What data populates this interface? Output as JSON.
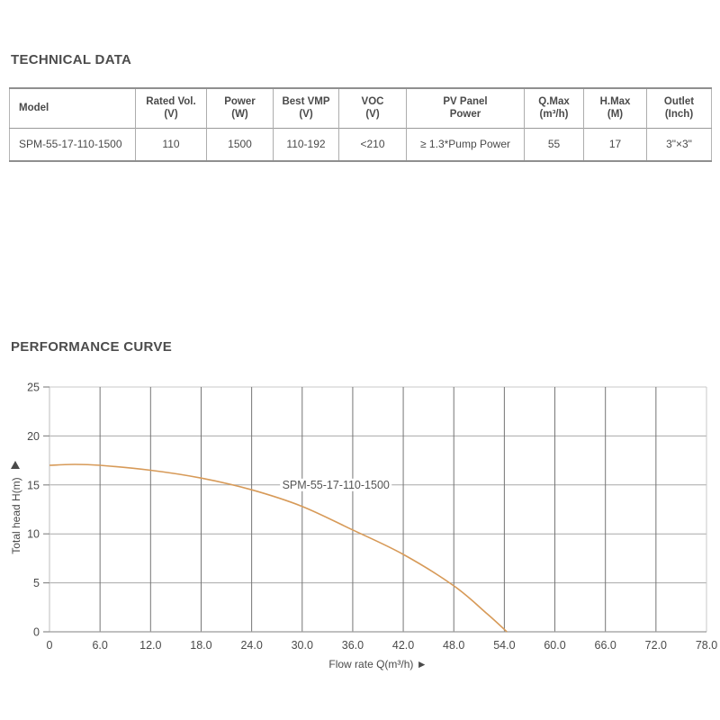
{
  "technical": {
    "title": "TECHNICAL DATA",
    "table": {
      "headers": [
        {
          "line1": "Model",
          "line2": ""
        },
        {
          "line1": "Rated Vol.",
          "line2": "(V)"
        },
        {
          "line1": "Power",
          "line2": "(W)"
        },
        {
          "line1": "Best VMP",
          "line2": "(V)"
        },
        {
          "line1": "VOC",
          "line2": "(V)"
        },
        {
          "line1": "PV Panel",
          "line2": "Power"
        },
        {
          "line1": "Q.Max",
          "line2": "(m³/h)"
        },
        {
          "line1": "H.Max",
          "line2": "(M)"
        },
        {
          "line1": "Outlet",
          "line2": "(Inch)"
        }
      ],
      "rows": [
        [
          "SPM-55-17-110-1500",
          "110",
          "1500",
          "110-192",
          "<210",
          "≥ 1.3*Pump Power",
          "55",
          "17",
          "3\"×3\""
        ]
      ]
    }
  },
  "performance": {
    "title": "PERFORMANCE CURVE"
  },
  "chart_data": {
    "type": "line",
    "title": "",
    "xlabel": "Flow rate Q(m³/h)",
    "xlabel_arrow": "►",
    "ylabel": "Total head H(m)",
    "ylabel_arrow": "▲",
    "xlim": [
      0,
      78
    ],
    "ylim": [
      0,
      25
    ],
    "x_ticks": [
      0,
      6,
      12,
      18,
      24,
      30,
      36,
      42,
      48,
      54,
      60,
      66,
      72,
      78
    ],
    "x_tick_labels": [
      "0",
      "6.0",
      "12.0",
      "18.0",
      "24.0",
      "30.0",
      "36.0",
      "42.0",
      "48.0",
      "54.0",
      "60.0",
      "66.0",
      "72.0",
      "78.0"
    ],
    "y_ticks": [
      0,
      5,
      10,
      15,
      20,
      25
    ],
    "y_tick_labels": [
      "0",
      "5",
      "10",
      "15",
      "20",
      "25"
    ],
    "grid": true,
    "legend_position": "on-curve",
    "series": [
      {
        "name": "SPM-55-17-110-1500",
        "color": "#D79A58",
        "points": [
          [
            0,
            17.0
          ],
          [
            3,
            17.1
          ],
          [
            6,
            17.0
          ],
          [
            12,
            16.5
          ],
          [
            18,
            15.7
          ],
          [
            24,
            14.5
          ],
          [
            30,
            12.8
          ],
          [
            36,
            10.4
          ],
          [
            42,
            7.9
          ],
          [
            48,
            4.7
          ],
          [
            52,
            1.8
          ],
          [
            54.3,
            0.0
          ]
        ],
        "label_value_at": [
          34,
          15
        ]
      }
    ],
    "colors": {
      "grid_vertical": "#757575",
      "grid_horizontal": "#a8a8a8",
      "plot_border": "#c9c9c9",
      "axis": "#9a9a9a",
      "tick": "#8a8a8a",
      "tick_label": "#4a4a4a",
      "axis_label": "#4a4a4a",
      "series_label": "#555555"
    }
  }
}
